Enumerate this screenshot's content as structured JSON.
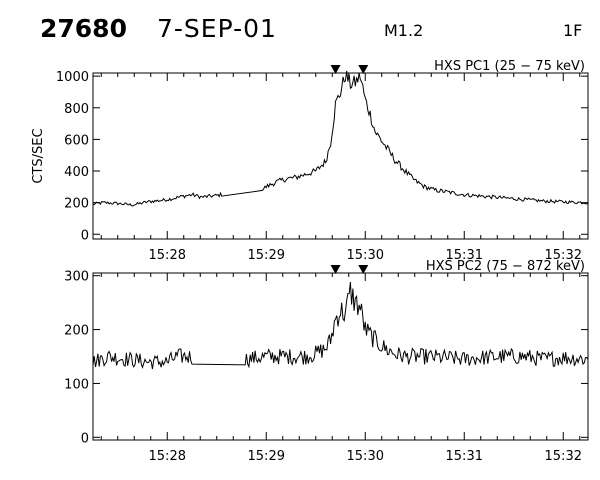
{
  "header": {
    "event_number": "27680",
    "date": "7-SEP-01",
    "goes_class": "M1.2",
    "optical_class": "1F"
  },
  "colors": {
    "trace": "#000000",
    "axes": "#000000",
    "background": "#ffffff"
  },
  "chart_data": [
    {
      "type": "line",
      "title": "HXS PC1 (25 − 75 keV)",
      "ylabel": "CTS/SEC",
      "xlabel": "",
      "xlim_minutes": [
        27.25,
        32.25
      ],
      "ylim": [
        -30,
        1020
      ],
      "yticks": [
        0,
        200,
        400,
        600,
        800,
        1000
      ],
      "xticks": [
        "15:28",
        "15:29",
        "15:30",
        "15:31",
        "15:32"
      ],
      "xtick_minutes": [
        28,
        29,
        30,
        31,
        32
      ],
      "grid": false,
      "markers_minutes": [
        29.7,
        29.98
      ],
      "series": [
        {
          "x_minutes": [
            27.25,
            27.35,
            27.5,
            27.65,
            27.8,
            27.95,
            28.05,
            28.15,
            28.25,
            28.35,
            28.5,
            28.65,
            28.8,
            28.95,
            29.0,
            29.1,
            29.2,
            29.3,
            29.4,
            29.5,
            29.55,
            29.6,
            29.65,
            29.7,
            29.75,
            29.8,
            29.85,
            29.9,
            29.95,
            30.0,
            30.05,
            30.1,
            30.2,
            30.3,
            30.4,
            30.5,
            30.6,
            30.7,
            30.8,
            30.9,
            31.0,
            31.2,
            31.4,
            31.6,
            31.8,
            32.0,
            32.25
          ],
          "y": [
            190,
            200,
            195,
            185,
            205,
            215,
            225,
            240,
            250,
            235,
            245,
            265,
            270,
            280,
            300,
            330,
            350,
            360,
            380,
            400,
            430,
            460,
            580,
            820,
            900,
            1010,
            950,
            960,
            1000,
            850,
            760,
            650,
            560,
            470,
            400,
            340,
            300,
            280,
            270,
            260,
            250,
            240,
            230,
            220,
            210,
            205,
            200
          ]
        }
      ]
    },
    {
      "type": "line",
      "title": "HXS PC2 (75 − 872 keV)",
      "ylabel": "",
      "xlabel": "",
      "xlim_minutes": [
        27.25,
        32.25
      ],
      "ylim": [
        -5,
        305
      ],
      "yticks": [
        0,
        100,
        200,
        300
      ],
      "xticks": [
        "15:28",
        "15:29",
        "15:30",
        "15:31",
        "15:32"
      ],
      "xtick_minutes": [
        28,
        29,
        30,
        31,
        32
      ],
      "grid": false,
      "markers_minutes": [
        29.7,
        29.98
      ],
      "series": [
        {
          "x_minutes": [
            27.25,
            27.4,
            27.6,
            27.8,
            28.0,
            28.1,
            28.2,
            28.4,
            28.6,
            28.8,
            29.0,
            29.2,
            29.4,
            29.5,
            29.6,
            29.65,
            29.7,
            29.75,
            29.8,
            29.85,
            29.9,
            29.95,
            30.0,
            30.05,
            30.1,
            30.2,
            30.3,
            30.4,
            30.6,
            30.8,
            31.0,
            31.2,
            31.4,
            31.6,
            31.8,
            32.0,
            32.25
          ],
          "y": [
            140,
            150,
            145,
            140,
            140,
            150,
            150,
            145,
            140,
            145,
            150,
            150,
            150,
            155,
            165,
            180,
            220,
            235,
            230,
            270,
            250,
            240,
            200,
            190,
            180,
            165,
            155,
            150,
            150,
            148,
            145,
            148,
            150,
            150,
            145,
            148,
            145
          ]
        }
      ]
    }
  ]
}
